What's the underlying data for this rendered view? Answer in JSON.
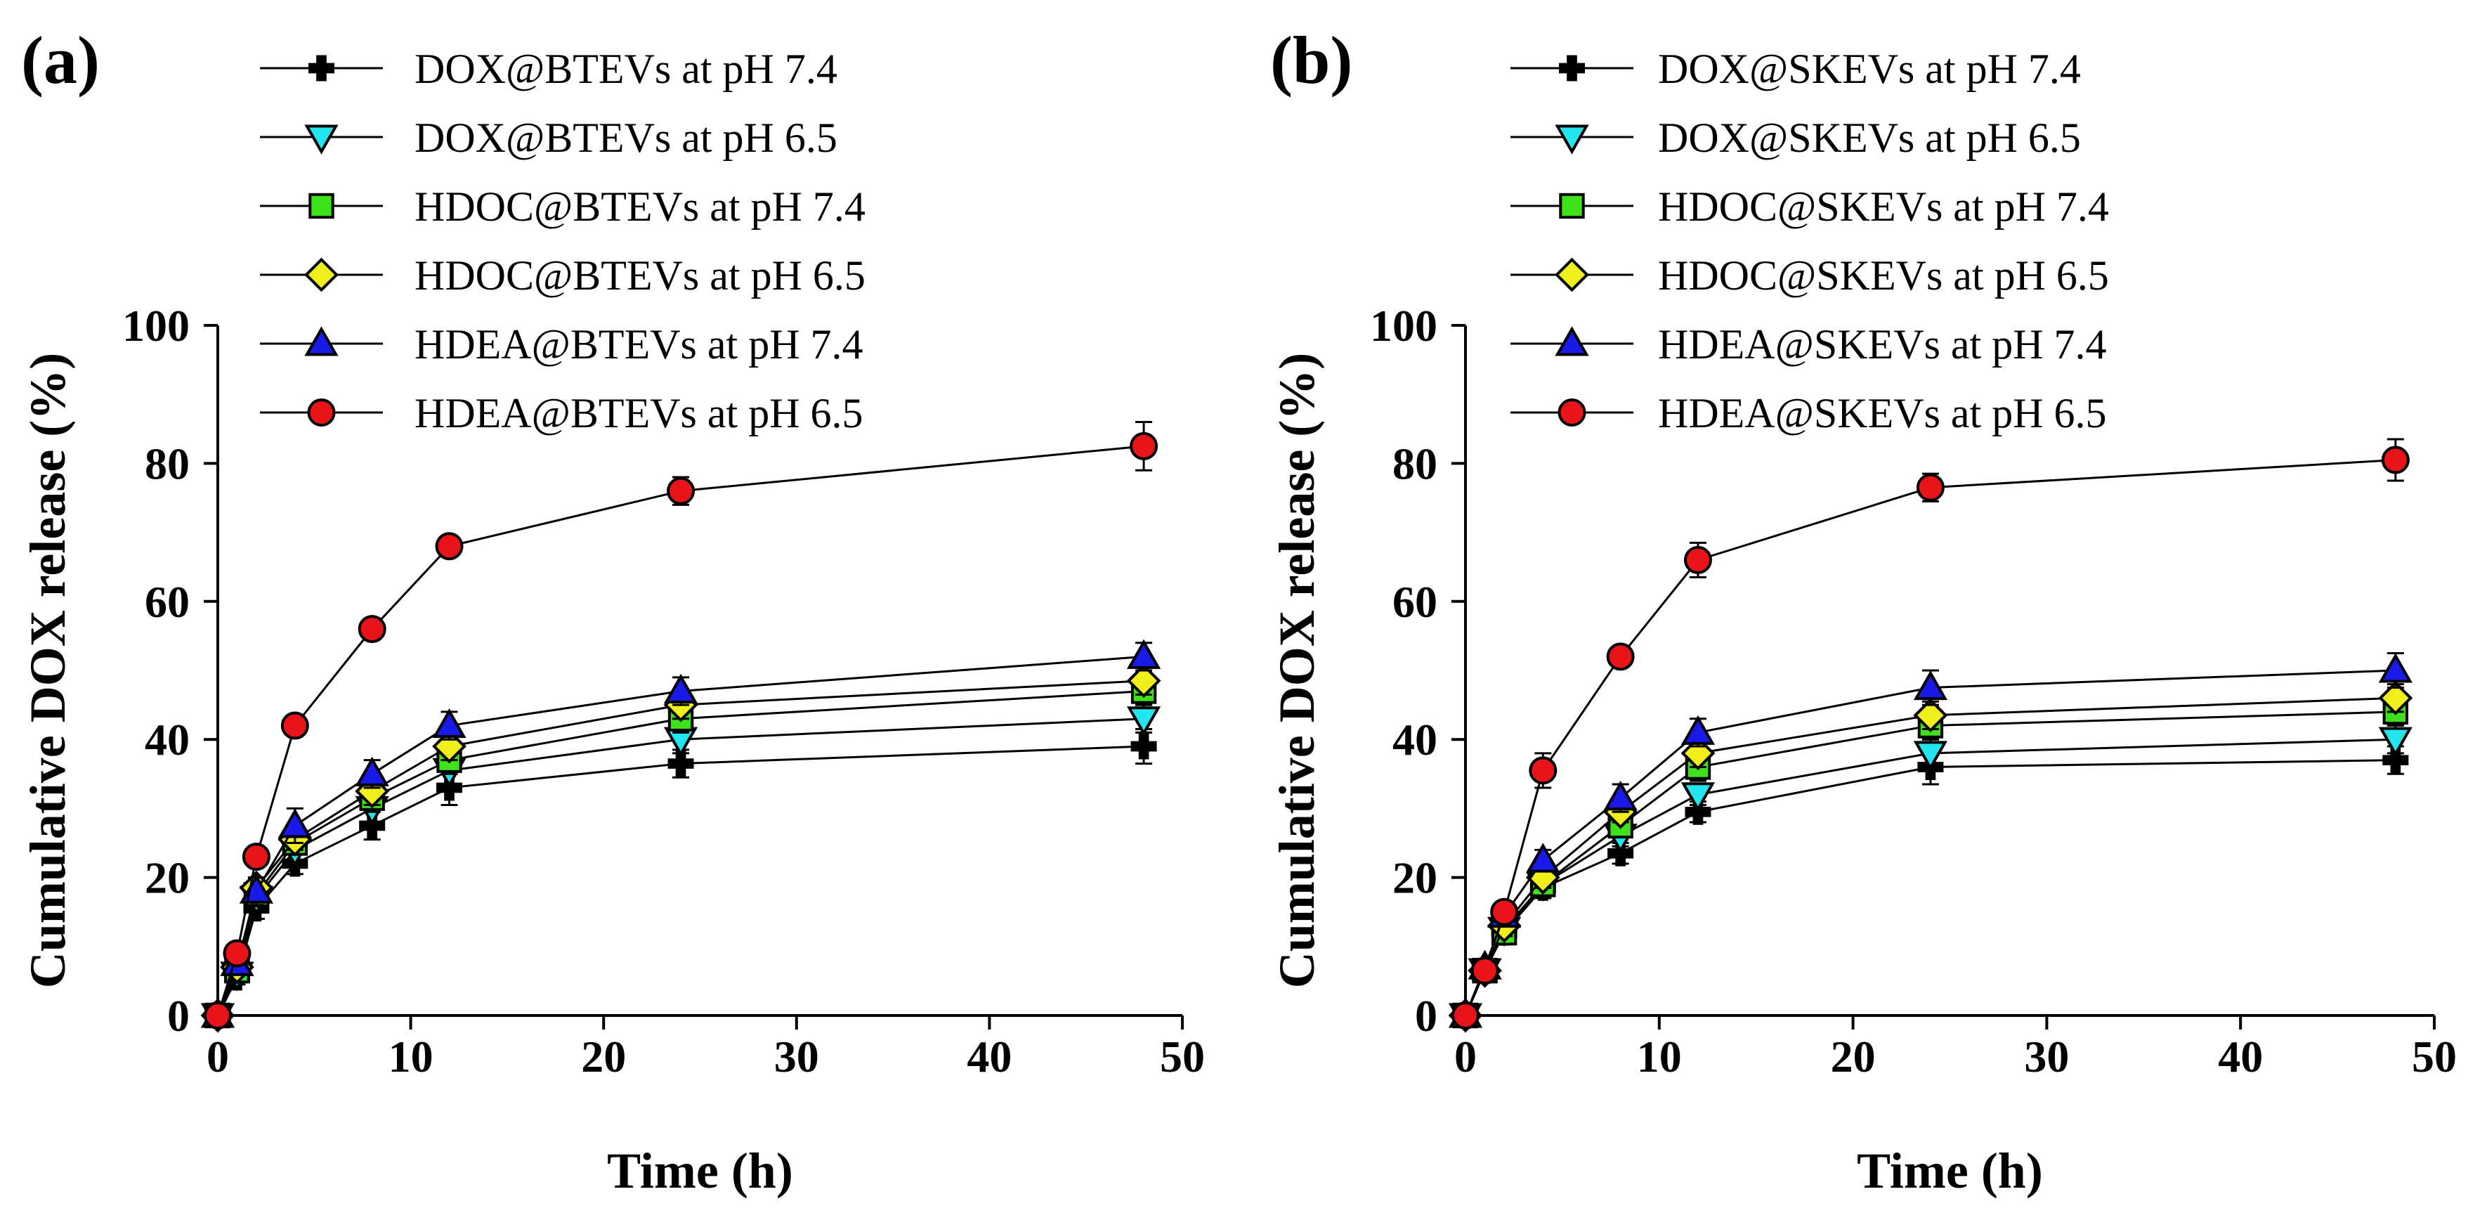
{
  "chart_data": [
    {
      "type": "line",
      "panel_label": "(a)",
      "xlabel": "Time (h)",
      "ylabel": "Cumulative DOX release (%)",
      "xlim": [
        0,
        50
      ],
      "ylim": [
        0,
        100
      ],
      "xticks": [
        0,
        10,
        20,
        30,
        40,
        50
      ],
      "yticks": [
        0,
        20,
        40,
        60,
        80,
        100
      ],
      "grid": false,
      "legend_position": "top-left",
      "x": [
        0,
        1,
        2,
        4,
        8,
        12,
        24,
        48
      ],
      "series": [
        {
          "name": "DOX@BTEVs at pH 7.4",
          "marker": "cross",
          "color": "#000000",
          "values": [
            0,
            5.5,
            15.5,
            22,
            27.5,
            33,
            36.5,
            39
          ],
          "errors": [
            0,
            1,
            1.5,
            1.5,
            2,
            2.5,
            2,
            2.5
          ]
        },
        {
          "name": "DOX@BTEVs at pH 6.5",
          "marker": "triangle-down",
          "color": "#22e5f0",
          "values": [
            0,
            6,
            17,
            24,
            30,
            35.5,
            40,
            43
          ],
          "errors": [
            0,
            1,
            1.5,
            1.5,
            2,
            2,
            2,
            2
          ]
        },
        {
          "name": "HDOC@BTEVs at pH 7.4",
          "marker": "square",
          "color": "#3ee21a",
          "values": [
            0,
            6.5,
            17.5,
            25,
            31.5,
            37,
            43,
            47
          ],
          "errors": [
            0,
            1,
            1.5,
            1.5,
            2,
            2,
            2,
            2
          ]
        },
        {
          "name": "HDOC@BTEVs at pH 6.5",
          "marker": "diamond",
          "color": "#f0ef1c",
          "values": [
            0,
            7,
            18.5,
            25.5,
            32.5,
            39,
            45,
            48.5
          ],
          "errors": [
            0,
            1,
            1.5,
            1.5,
            2,
            2,
            2,
            2
          ]
        },
        {
          "name": "HDEA@BTEVs at pH 7.4",
          "marker": "triangle-up",
          "color": "#1a1ae8",
          "values": [
            0,
            7.5,
            18,
            27.5,
            35,
            42,
            47,
            52
          ],
          "errors": [
            0,
            1,
            2,
            2.5,
            2,
            2,
            2,
            2
          ]
        },
        {
          "name": "HDEA@BTEVs at pH 6.5",
          "marker": "circle",
          "color": "#e8141a",
          "values": [
            0,
            9,
            23,
            42,
            56,
            68,
            76,
            82.5
          ],
          "errors": [
            0,
            1,
            1,
            1,
            1.5,
            1.5,
            2,
            3.5
          ]
        }
      ]
    },
    {
      "type": "line",
      "panel_label": "(b)",
      "xlabel": "Time (h)",
      "ylabel": "Cumulative DOX release (%)",
      "xlim": [
        0,
        50
      ],
      "ylim": [
        0,
        100
      ],
      "xticks": [
        0,
        10,
        20,
        30,
        40,
        50
      ],
      "yticks": [
        0,
        20,
        40,
        60,
        80,
        100
      ],
      "grid": false,
      "legend_position": "top-left",
      "x": [
        0,
        1,
        2,
        4,
        8,
        12,
        24,
        48
      ],
      "series": [
        {
          "name": "DOX@SKEVs at pH 7.4",
          "marker": "cross",
          "color": "#000000",
          "values": [
            0,
            6.5,
            12,
            18.5,
            23.5,
            29.5,
            36,
            37
          ],
          "errors": [
            0,
            1,
            1.5,
            1.5,
            1.5,
            1.5,
            2.5,
            2
          ]
        },
        {
          "name": "DOX@SKEVs at pH 6.5",
          "marker": "triangle-down",
          "color": "#22e5f0",
          "values": [
            0,
            6.5,
            12.5,
            19,
            26,
            32,
            38,
            40
          ],
          "errors": [
            0,
            1,
            1.5,
            1.5,
            1.5,
            1.5,
            2,
            2
          ]
        },
        {
          "name": "HDOC@SKEVs at pH 7.4",
          "marker": "square",
          "color": "#3ee21a",
          "values": [
            0,
            6.5,
            12,
            19,
            27.5,
            36,
            42,
            44
          ],
          "errors": [
            0,
            1,
            1.5,
            1.5,
            1.5,
            2,
            2,
            2
          ]
        },
        {
          "name": "HDOC@SKEVs at pH 6.5",
          "marker": "diamond",
          "color": "#f0ef1c",
          "values": [
            0,
            6.5,
            13,
            20,
            29.5,
            38,
            43.5,
            46
          ],
          "errors": [
            0,
            1,
            1.5,
            1.5,
            1.5,
            2,
            2,
            2
          ]
        },
        {
          "name": "HDEA@SKEVs at pH 7.4",
          "marker": "triangle-up",
          "color": "#1a1ae8",
          "values": [
            0,
            7,
            14.5,
            22.5,
            31.5,
            41,
            47.5,
            50
          ],
          "errors": [
            0,
            1,
            1.5,
            1.5,
            2,
            2,
            2.5,
            2.5
          ]
        },
        {
          "name": "HDEA@SKEVs at pH 6.5",
          "marker": "circle",
          "color": "#e8141a",
          "values": [
            0,
            6.5,
            15,
            35.5,
            52,
            66,
            76.5,
            80.5
          ],
          "errors": [
            0,
            1,
            1,
            2.5,
            1.5,
            2.5,
            2,
            3
          ]
        }
      ]
    }
  ]
}
